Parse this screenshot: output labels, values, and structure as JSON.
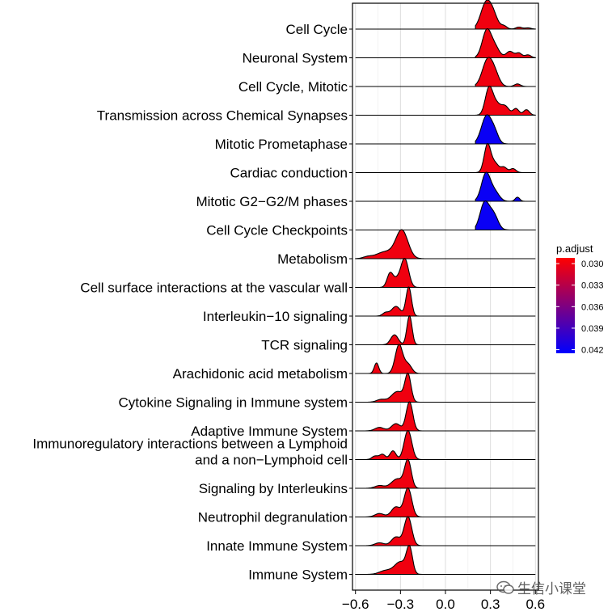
{
  "chart_data": {
    "type": "ridgeline",
    "x_ticks": [
      "-0.6",
      "-0.3",
      "0.0",
      "0.3",
      "0.6"
    ],
    "x_tick_values": [
      -0.6,
      -0.3,
      0.0,
      0.3,
      0.6
    ],
    "xlim": [
      -0.62,
      0.62
    ],
    "legend": {
      "title": "p.adjust",
      "ticks": [
        "0.030",
        "0.033",
        "0.036",
        "0.039",
        "0.042"
      ],
      "tick_values": [
        0.03,
        0.033,
        0.036,
        0.039,
        0.042
      ],
      "range": [
        0.0292,
        0.0425
      ],
      "color_low_p": "#FF0000",
      "color_high_p": "#0000FF",
      "position": "right"
    },
    "series": [
      {
        "name": "Cell Cycle",
        "label_lines": [
          "Cell Cycle"
        ],
        "p_adjust": 0.03,
        "x_min": 0.2,
        "x_max": 0.6,
        "peaks": [
          [
            0.27,
            1.0,
            0.035
          ],
          [
            0.32,
            0.45,
            0.03
          ],
          [
            0.39,
            0.12,
            0.02
          ],
          [
            0.49,
            0.08,
            0.02
          ],
          [
            0.55,
            0.05,
            0.02
          ]
        ]
      },
      {
        "name": "Neuronal System",
        "label_lines": [
          "Neuronal System"
        ],
        "p_adjust": 0.03,
        "x_min": 0.2,
        "x_max": 0.6,
        "peaks": [
          [
            0.275,
            0.92,
            0.03
          ],
          [
            0.33,
            0.35,
            0.03
          ],
          [
            0.43,
            0.22,
            0.025
          ],
          [
            0.49,
            0.16,
            0.02
          ],
          [
            0.55,
            0.1,
            0.02
          ]
        ]
      },
      {
        "name": "Cell Cycle, Mitotic",
        "label_lines": [
          "Cell Cycle, Mitotic"
        ],
        "p_adjust": 0.03,
        "x_min": 0.2,
        "x_max": 0.6,
        "peaks": [
          [
            0.28,
            1.0,
            0.035
          ],
          [
            0.33,
            0.4,
            0.03
          ],
          [
            0.48,
            0.1,
            0.02
          ]
        ]
      },
      {
        "name": "Transmission across Chemical Synapses",
        "label_lines": [
          "Transmission across Chemical Synapses"
        ],
        "p_adjust": 0.03,
        "x_min": 0.2,
        "x_max": 0.6,
        "peaks": [
          [
            0.29,
            0.95,
            0.025
          ],
          [
            0.34,
            0.4,
            0.03
          ],
          [
            0.4,
            0.3,
            0.025
          ],
          [
            0.47,
            0.24,
            0.02
          ],
          [
            0.54,
            0.2,
            0.02
          ]
        ]
      },
      {
        "name": "Mitotic Prometaphase",
        "label_lines": [
          "Mitotic Prometaphase"
        ],
        "p_adjust": 0.042,
        "x_min": 0.2,
        "x_max": 0.6,
        "peaks": [
          [
            0.275,
            1.0,
            0.035
          ],
          [
            0.33,
            0.3,
            0.025
          ]
        ]
      },
      {
        "name": "Cardiac conduction",
        "label_lines": [
          "Cardiac conduction"
        ],
        "p_adjust": 0.03,
        "x_min": 0.2,
        "x_max": 0.6,
        "peaks": [
          [
            0.28,
            1.05,
            0.022
          ],
          [
            0.33,
            0.35,
            0.025
          ],
          [
            0.39,
            0.2,
            0.02
          ],
          [
            0.45,
            0.15,
            0.02
          ]
        ]
      },
      {
        "name": "Mitotic G2-G2/M phases",
        "label_lines": [
          "Mitotic G2−G2/M phases"
        ],
        "p_adjust": 0.042,
        "x_min": 0.2,
        "x_max": 0.6,
        "peaks": [
          [
            0.27,
            0.95,
            0.03
          ],
          [
            0.33,
            0.3,
            0.03
          ],
          [
            0.48,
            0.14,
            0.015
          ]
        ]
      },
      {
        "name": "Cell Cycle Checkpoints",
        "label_lines": [
          "Cell Cycle Checkpoints"
        ],
        "p_adjust": 0.042,
        "x_min": 0.2,
        "x_max": 0.6,
        "peaks": [
          [
            0.26,
            0.95,
            0.03
          ],
          [
            0.32,
            0.55,
            0.03
          ]
        ]
      },
      {
        "name": "Metabolism",
        "label_lines": [
          "Metabolism"
        ],
        "p_adjust": 0.03,
        "x_min": -0.6,
        "x_max": 0.0,
        "peaks": [
          [
            -0.29,
            1.0,
            0.04
          ],
          [
            -0.4,
            0.25,
            0.06
          ],
          [
            -0.52,
            0.06,
            0.03
          ]
        ]
      },
      {
        "name": "Cell surface interactions at the vascular wall",
        "label_lines": [
          "Cell surface interactions at the vascular wall"
        ],
        "p_adjust": 0.03,
        "x_min": -0.6,
        "x_max": 0.0,
        "peaks": [
          [
            -0.27,
            1.0,
            0.025
          ],
          [
            -0.37,
            0.48,
            0.02
          ],
          [
            -0.32,
            0.3,
            0.03
          ]
        ]
      },
      {
        "name": "Interleukin-10 signaling",
        "label_lines": [
          "Interleukin−10 signaling"
        ],
        "p_adjust": 0.03,
        "x_min": -0.6,
        "x_max": 0.0,
        "peaks": [
          [
            -0.245,
            1.05,
            0.018
          ],
          [
            -0.33,
            0.35,
            0.03
          ],
          [
            -0.4,
            0.12,
            0.02
          ]
        ]
      },
      {
        "name": "TCR signaling",
        "label_lines": [
          "TCR signaling"
        ],
        "p_adjust": 0.03,
        "x_min": -0.6,
        "x_max": 0.0,
        "peaks": [
          [
            -0.24,
            1.05,
            0.017
          ],
          [
            -0.34,
            0.36,
            0.025
          ]
        ]
      },
      {
        "name": "Arachidonic acid metabolism",
        "label_lines": [
          "Arachidonic acid metabolism"
        ],
        "p_adjust": 0.03,
        "x_min": -0.6,
        "x_max": 0.0,
        "peaks": [
          [
            -0.31,
            0.95,
            0.025
          ],
          [
            -0.46,
            0.35,
            0.015
          ],
          [
            -0.25,
            0.3,
            0.025
          ]
        ]
      },
      {
        "name": "Cytokine Signaling in Immune system",
        "label_lines": [
          "Cytokine Signaling in Immune system"
        ],
        "p_adjust": 0.03,
        "x_min": -0.6,
        "x_max": 0.0,
        "peaks": [
          [
            -0.25,
            1.0,
            0.02
          ],
          [
            -0.32,
            0.4,
            0.04
          ],
          [
            -0.43,
            0.1,
            0.03
          ]
        ]
      },
      {
        "name": "Adaptive Immune System",
        "label_lines": [
          "Adaptive Immune System"
        ],
        "p_adjust": 0.03,
        "x_min": -0.6,
        "x_max": 0.0,
        "peaks": [
          [
            -0.24,
            1.0,
            0.022
          ],
          [
            -0.33,
            0.25,
            0.03
          ],
          [
            -0.44,
            0.12,
            0.03
          ]
        ]
      },
      {
        "name": "Immunoregulatory interactions between a Lymphoid and a non-Lymphoid cell",
        "label_lines": [
          "Immunoregulatory interactions between a Lymphoid",
          "and a non−Lymphoid cell"
        ],
        "p_adjust": 0.03,
        "x_min": -0.6,
        "x_max": 0.0,
        "peaks": [
          [
            -0.25,
            1.0,
            0.025
          ],
          [
            -0.35,
            0.3,
            0.02
          ],
          [
            -0.42,
            0.18,
            0.02
          ],
          [
            -0.47,
            0.12,
            0.02
          ]
        ]
      },
      {
        "name": "Signaling by Interleukins",
        "label_lines": [
          "Signaling by Interleukins"
        ],
        "p_adjust": 0.03,
        "x_min": -0.6,
        "x_max": 0.0,
        "peaks": [
          [
            -0.25,
            1.0,
            0.022
          ],
          [
            -0.32,
            0.35,
            0.04
          ],
          [
            -0.44,
            0.1,
            0.03
          ]
        ]
      },
      {
        "name": "Neutrophil degranulation",
        "label_lines": [
          "Neutrophil degranulation"
        ],
        "p_adjust": 0.03,
        "x_min": -0.6,
        "x_max": 0.0,
        "peaks": [
          [
            -0.25,
            1.0,
            0.025
          ],
          [
            -0.33,
            0.35,
            0.03
          ],
          [
            -0.44,
            0.12,
            0.03
          ]
        ]
      },
      {
        "name": "Innate Immune System",
        "label_lines": [
          "Innate Immune System"
        ],
        "p_adjust": 0.03,
        "x_min": -0.6,
        "x_max": 0.0,
        "peaks": [
          [
            -0.25,
            1.0,
            0.025
          ],
          [
            -0.33,
            0.3,
            0.03
          ],
          [
            -0.44,
            0.1,
            0.03
          ]
        ]
      },
      {
        "name": "Immune System",
        "label_lines": [
          "Immune System"
        ],
        "p_adjust": 0.03,
        "x_min": -0.6,
        "x_max": 0.0,
        "peaks": [
          [
            -0.24,
            1.0,
            0.02
          ],
          [
            -0.3,
            0.5,
            0.04
          ],
          [
            -0.4,
            0.15,
            0.04
          ]
        ]
      }
    ]
  },
  "watermark": {
    "text": "生信小课堂",
    "icon": "wechat-bubble-icon"
  }
}
